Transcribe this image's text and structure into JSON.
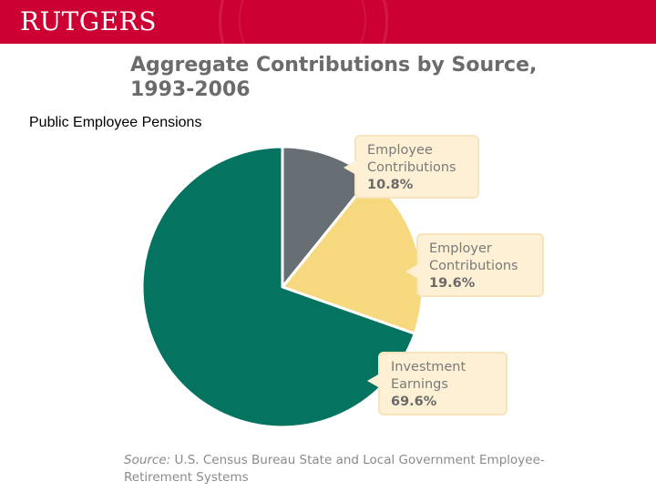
{
  "header": {
    "logo_text": "RUTGERS",
    "brand_color": "#cc0033"
  },
  "slide": {
    "subtitle": "Public Employee Pensions"
  },
  "chart_data": {
    "type": "pie",
    "title": "Aggregate Contributions by Source, 1993-2006",
    "slices": [
      {
        "label": "Employee Contributions",
        "value": 10.8,
        "value_label": "10.8%",
        "color": "#676e74"
      },
      {
        "label": "Employer Contributions",
        "value": 19.6,
        "value_label": "19.6%",
        "color": "#f6d97f"
      },
      {
        "label": "Investment Earnings",
        "value": 69.6,
        "value_label": "69.6%",
        "color": "#047460"
      }
    ],
    "start_angle": "12 o'clock",
    "direction": "clockwise",
    "source_prefix": "Source:",
    "source_text": "U.S. Census Bureau State and Local Government Employee-Retirement Systems"
  }
}
